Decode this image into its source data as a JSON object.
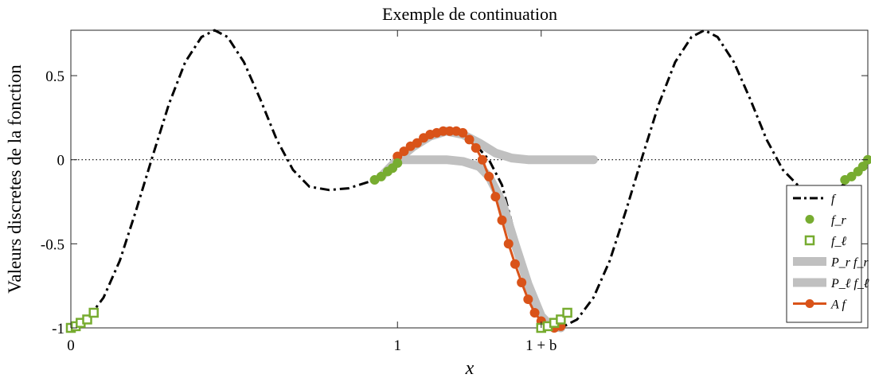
{
  "chart_data": {
    "type": "line",
    "title": "Exemple de continuation",
    "xlabel": "x",
    "ylabel": "Valeurs discretes de la fonction",
    "xlim": [
      0,
      2.44
    ],
    "ylim": [
      -1,
      0.77
    ],
    "x_ticks": [
      {
        "value": 0,
        "label": "0"
      },
      {
        "value": 1,
        "label": "1"
      },
      {
        "value": 1.44,
        "label": "1 + b"
      }
    ],
    "y_ticks": [
      {
        "value": 0.5,
        "label": "0.5"
      },
      {
        "value": 0,
        "label": "0"
      },
      {
        "value": -0.5,
        "label": "-0.5"
      },
      {
        "value": -1,
        "label": "-1"
      }
    ],
    "reference_line": {
      "y": 0,
      "style": "dotted"
    },
    "legend_position": "bottom-right",
    "series": [
      {
        "name": "f",
        "style": "dash-dot",
        "color": "#000000",
        "points": [
          [
            0,
            -1
          ],
          [
            0.05,
            -0.95
          ],
          [
            0.1,
            -0.82
          ],
          [
            0.15,
            -0.6
          ],
          [
            0.2,
            -0.3
          ],
          [
            0.25,
            0.02
          ],
          [
            0.3,
            0.33
          ],
          [
            0.35,
            0.58
          ],
          [
            0.4,
            0.73
          ],
          [
            0.44,
            0.77
          ],
          [
            0.48,
            0.73
          ],
          [
            0.53,
            0.58
          ],
          [
            0.58,
            0.36
          ],
          [
            0.63,
            0.12
          ],
          [
            0.68,
            -0.06
          ],
          [
            0.73,
            -0.16
          ],
          [
            0.79,
            -0.18
          ],
          [
            0.85,
            -0.17
          ],
          [
            0.93,
            -0.12
          ],
          [
            1.0,
            0.0
          ],
          [
            1.05,
            0.08
          ],
          [
            1.1,
            0.15
          ],
          [
            1.17,
            0.17
          ],
          [
            1.22,
            0.13
          ],
          [
            1.28,
            0.0
          ],
          [
            1.32,
            -0.15
          ],
          [
            1.36,
            -0.45
          ],
          [
            1.4,
            -0.72
          ],
          [
            1.44,
            -0.92
          ],
          [
            1.47,
            -0.99
          ],
          [
            1.5,
            -1.0
          ],
          [
            1.55,
            -0.95
          ],
          [
            1.6,
            -0.82
          ],
          [
            1.65,
            -0.6
          ],
          [
            1.7,
            -0.3
          ],
          [
            1.75,
            0.02
          ],
          [
            1.8,
            0.33
          ],
          [
            1.85,
            0.58
          ],
          [
            1.9,
            0.73
          ],
          [
            1.94,
            0.77
          ],
          [
            1.98,
            0.73
          ],
          [
            2.03,
            0.58
          ],
          [
            2.08,
            0.36
          ],
          [
            2.13,
            0.12
          ],
          [
            2.18,
            -0.06
          ],
          [
            2.23,
            -0.16
          ],
          [
            2.29,
            -0.18
          ],
          [
            2.35,
            -0.17
          ],
          [
            2.4,
            -0.1
          ],
          [
            2.44,
            0.0
          ]
        ]
      },
      {
        "name": "f_r",
        "marker": "filled-circle",
        "color": "#77ac30",
        "points": [
          [
            0.93,
            -0.12
          ],
          [
            0.95,
            -0.1
          ],
          [
            0.97,
            -0.07
          ],
          [
            0.985,
            -0.05
          ],
          [
            1.0,
            -0.02
          ],
          [
            2.37,
            -0.12
          ],
          [
            2.39,
            -0.1
          ],
          [
            2.41,
            -0.07
          ],
          [
            2.425,
            -0.04
          ],
          [
            2.44,
            0.0
          ]
        ]
      },
      {
        "name": "f_l",
        "marker": "open-square",
        "color": "#77ac30",
        "points": [
          [
            0,
            -1
          ],
          [
            0.015,
            -0.99
          ],
          [
            0.03,
            -0.97
          ],
          [
            0.05,
            -0.95
          ],
          [
            0.07,
            -0.91
          ],
          [
            1.44,
            -1.0
          ],
          [
            1.46,
            -0.99
          ],
          [
            1.48,
            -0.97
          ],
          [
            1.5,
            -0.95
          ],
          [
            1.52,
            -0.91
          ]
        ]
      },
      {
        "name": "P_r f_r",
        "style": "thick",
        "color": "#c0c0c0",
        "points": [
          [
            0.95,
            -0.1
          ],
          [
            1.0,
            0.0
          ],
          [
            1.05,
            0.08
          ],
          [
            1.1,
            0.14
          ],
          [
            1.15,
            0.17
          ],
          [
            1.2,
            0.15
          ],
          [
            1.25,
            0.1
          ],
          [
            1.3,
            0.04
          ],
          [
            1.35,
            0.01
          ],
          [
            1.4,
            0.0
          ],
          [
            1.45,
            0.0
          ],
          [
            1.5,
            0.0
          ],
          [
            1.55,
            0.0
          ],
          [
            1.6,
            0.0
          ]
        ]
      },
      {
        "name": "P_l f_l",
        "style": "thick",
        "color": "#c0c0c0",
        "points": [
          [
            1.0,
            0.0
          ],
          [
            1.1,
            0.0
          ],
          [
            1.15,
            0.0
          ],
          [
            1.2,
            -0.01
          ],
          [
            1.25,
            -0.04
          ],
          [
            1.28,
            -0.1
          ],
          [
            1.32,
            -0.25
          ],
          [
            1.36,
            -0.5
          ],
          [
            1.4,
            -0.74
          ],
          [
            1.44,
            -0.93
          ],
          [
            1.47,
            -0.99
          ],
          [
            1.5,
            -1.0
          ]
        ]
      },
      {
        "name": "A f",
        "marker": "filled-circle",
        "style": "solid",
        "color": "#d95319",
        "points": [
          [
            1.0,
            0.02
          ],
          [
            1.02,
            0.05
          ],
          [
            1.04,
            0.08
          ],
          [
            1.06,
            0.1
          ],
          [
            1.08,
            0.13
          ],
          [
            1.1,
            0.15
          ],
          [
            1.12,
            0.16
          ],
          [
            1.14,
            0.17
          ],
          [
            1.16,
            0.17
          ],
          [
            1.18,
            0.17
          ],
          [
            1.2,
            0.16
          ],
          [
            1.22,
            0.12
          ],
          [
            1.24,
            0.07
          ],
          [
            1.26,
            0.0
          ],
          [
            1.28,
            -0.1
          ],
          [
            1.3,
            -0.22
          ],
          [
            1.32,
            -0.36
          ],
          [
            1.34,
            -0.5
          ],
          [
            1.36,
            -0.62
          ],
          [
            1.38,
            -0.73
          ],
          [
            1.4,
            -0.83
          ],
          [
            1.42,
            -0.91
          ],
          [
            1.44,
            -0.96
          ],
          [
            1.46,
            -0.99
          ],
          [
            1.48,
            -1.0
          ],
          [
            1.5,
            -0.99
          ]
        ]
      }
    ],
    "legend": [
      {
        "series": 0,
        "label": "f"
      },
      {
        "series": 1,
        "label": "f_r"
      },
      {
        "series": 2,
        "label": "f_ℓ"
      },
      {
        "series": 3,
        "label": "P_r f_r"
      },
      {
        "series": 4,
        "label": "P_ℓ f_ℓ"
      },
      {
        "series": 5,
        "label": "A f"
      }
    ]
  }
}
